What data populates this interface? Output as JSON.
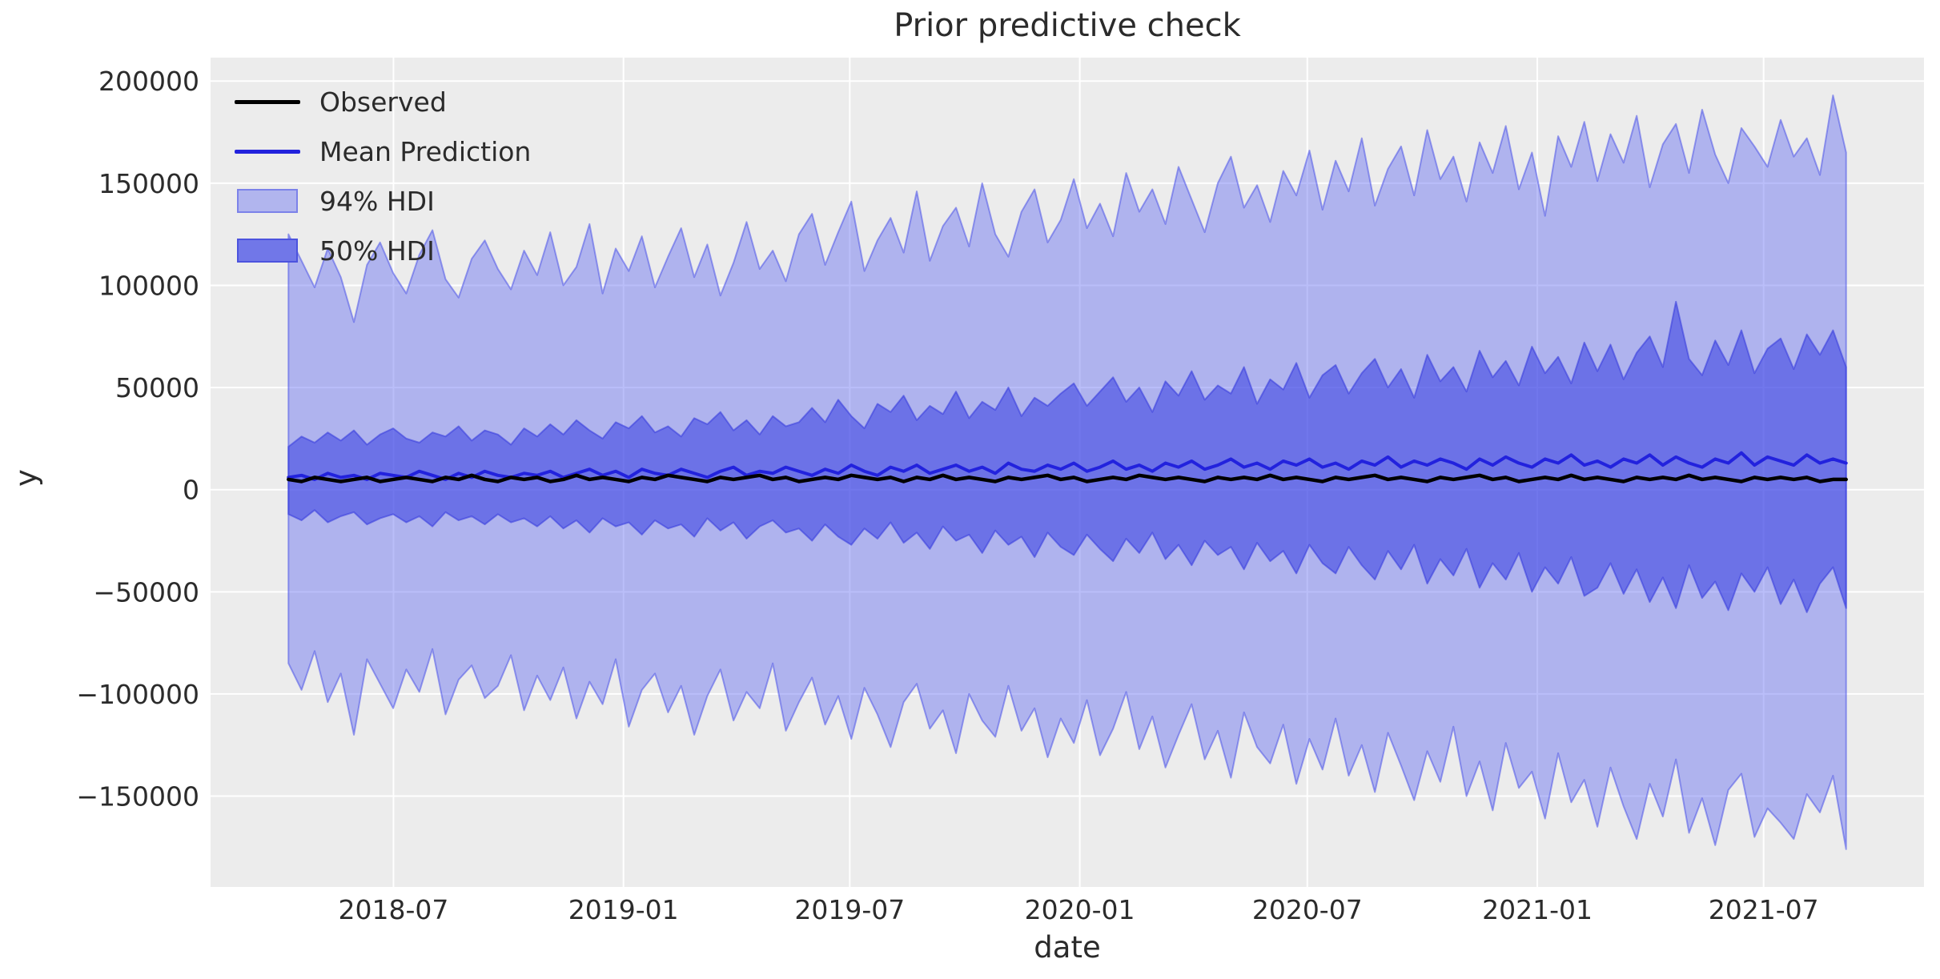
{
  "title": "Prior predictive check",
  "axes": {
    "xlabel": "date",
    "ylabel": "y"
  },
  "legend": {
    "items": [
      {
        "label": "Observed",
        "type": "line",
        "color": "#000000"
      },
      {
        "label": "Mean Prediction",
        "type": "line",
        "color": "#2222dd"
      },
      {
        "label": "94% HDI",
        "type": "patch",
        "fill": "#b1b5ee",
        "border": "#7c82e9"
      },
      {
        "label": "50% HDI",
        "type": "patch",
        "fill": "#7177e8",
        "border": "#4c53de"
      }
    ]
  },
  "chart_data": {
    "type": "area",
    "title": "Prior predictive check",
    "xlabel": "date",
    "ylabel": "y",
    "x_start": "2018-04-08",
    "x_end": "2021-09-05",
    "n_points": 120,
    "xticks": [
      "2018-07-01",
      "2019-01-01",
      "2019-07-01",
      "2020-01-01",
      "2020-07-01",
      "2021-01-01",
      "2021-07-01"
    ],
    "xtick_labels": [
      "2018-07",
      "2019-01",
      "2019-07",
      "2020-01",
      "2020-07",
      "2021-01",
      "2021-07"
    ],
    "yticks": [
      -150000,
      -100000,
      -50000,
      0,
      50000,
      100000,
      150000,
      200000
    ],
    "ytick_labels": [
      "−150000",
      "−100000",
      "−50000",
      "0",
      "50000",
      "100000",
      "150000",
      "200000"
    ],
    "grid": true,
    "legend_position": "upper left",
    "colors": {
      "plot_bg": "#ececec",
      "grid": "#ffffff",
      "hdi94_fill": "rgba(91,101,241,0.42)",
      "hdi94_edge": "rgba(76,84,232,0.55)",
      "hdi50_fill": "rgba(53,60,225,0.55)",
      "hdi50_edge": "rgba(58,64,222,0.60)",
      "mean": "#2222dd",
      "observed": "#000000",
      "tick_text": "#2b2b2b"
    },
    "series": {
      "hdi94_upper": [
        125000,
        112000,
        99000,
        118000,
        104000,
        82000,
        110000,
        121000,
        106000,
        96000,
        115000,
        127000,
        103000,
        94000,
        113000,
        122000,
        108000,
        98000,
        117000,
        105000,
        126000,
        100000,
        109000,
        130000,
        96000,
        118000,
        107000,
        124000,
        99000,
        114000,
        128000,
        104000,
        120000,
        95000,
        111000,
        131000,
        108000,
        117000,
        102000,
        125000,
        135000,
        110000,
        126000,
        141000,
        107000,
        122000,
        133000,
        116000,
        146000,
        112000,
        129000,
        138000,
        119000,
        150000,
        125000,
        114000,
        136000,
        147000,
        121000,
        132000,
        152000,
        128000,
        140000,
        124000,
        155000,
        136000,
        147000,
        130000,
        158000,
        142000,
        126000,
        150000,
        163000,
        138000,
        149000,
        131000,
        156000,
        144000,
        166000,
        137000,
        161000,
        146000,
        172000,
        139000,
        157000,
        168000,
        144000,
        176000,
        152000,
        163000,
        141000,
        170000,
        155000,
        178000,
        147000,
        165000,
        134000,
        173000,
        158000,
        180000,
        151000,
        174000,
        160000,
        183000,
        148000,
        169000,
        179000,
        155000,
        186000,
        164000,
        150000,
        177000,
        168000,
        158000,
        181000,
        163000,
        172000,
        154000,
        193000,
        165000
      ],
      "hdi94_lower": [
        -85000,
        -98000,
        -79000,
        -104000,
        -90000,
        -120000,
        -83000,
        -95000,
        -107000,
        -88000,
        -99000,
        -78000,
        -110000,
        -93000,
        -86000,
        -102000,
        -96000,
        -81000,
        -108000,
        -91000,
        -103000,
        -87000,
        -112000,
        -94000,
        -105000,
        -83000,
        -116000,
        -98000,
        -90000,
        -109000,
        -96000,
        -120000,
        -101000,
        -88000,
        -113000,
        -99000,
        -107000,
        -85000,
        -118000,
        -104000,
        -92000,
        -115000,
        -101000,
        -122000,
        -97000,
        -110000,
        -126000,
        -104000,
        -95000,
        -117000,
        -108000,
        -129000,
        -100000,
        -113000,
        -121000,
        -96000,
        -118000,
        -107000,
        -131000,
        -112000,
        -124000,
        -103000,
        -130000,
        -117000,
        -99000,
        -127000,
        -111000,
        -136000,
        -120000,
        -105000,
        -132000,
        -118000,
        -141000,
        -109000,
        -126000,
        -134000,
        -115000,
        -144000,
        -122000,
        -137000,
        -112000,
        -140000,
        -125000,
        -148000,
        -119000,
        -135000,
        -152000,
        -128000,
        -143000,
        -116000,
        -150000,
        -133000,
        -157000,
        -124000,
        -146000,
        -138000,
        -161000,
        -129000,
        -153000,
        -142000,
        -165000,
        -136000,
        -155000,
        -171000,
        -144000,
        -160000,
        -132000,
        -168000,
        -151000,
        -174000,
        -147000,
        -139000,
        -170000,
        -156000,
        -163000,
        -171000,
        -149000,
        -158000,
        -140000,
        -176000
      ],
      "hdi50_upper": [
        21000,
        26000,
        23000,
        28000,
        24000,
        29000,
        22000,
        27000,
        30000,
        25000,
        23000,
        28000,
        26000,
        31000,
        24000,
        29000,
        27000,
        22000,
        30000,
        26000,
        32000,
        27000,
        34000,
        29000,
        25000,
        33000,
        30000,
        36000,
        28000,
        31000,
        26000,
        35000,
        32000,
        38000,
        29000,
        34000,
        27000,
        36000,
        31000,
        33000,
        40000,
        33000,
        44000,
        36000,
        30000,
        42000,
        38000,
        46000,
        34000,
        41000,
        37000,
        48000,
        35000,
        43000,
        39000,
        50000,
        36000,
        45000,
        41000,
        47000,
        52000,
        41000,
        48000,
        55000,
        43000,
        50000,
        38000,
        53000,
        46000,
        58000,
        44000,
        51000,
        47000,
        60000,
        42000,
        54000,
        49000,
        62000,
        45000,
        56000,
        61000,
        47000,
        57000,
        64000,
        50000,
        59000,
        45000,
        66000,
        53000,
        60000,
        48000,
        68000,
        55000,
        63000,
        51000,
        70000,
        57000,
        65000,
        52000,
        72000,
        58000,
        71000,
        54000,
        67000,
        75000,
        60000,
        92000,
        64000,
        56000,
        73000,
        61000,
        78000,
        57000,
        69000,
        74000,
        59000,
        76000,
        66000,
        78000,
        60000
      ],
      "hdi50_lower": [
        -12000,
        -15000,
        -10000,
        -16000,
        -13000,
        -11000,
        -17000,
        -14000,
        -12000,
        -16000,
        -13000,
        -18000,
        -11000,
        -15000,
        -13000,
        -17000,
        -12000,
        -16000,
        -14000,
        -18000,
        -13000,
        -19000,
        -15000,
        -21000,
        -14000,
        -18000,
        -16000,
        -22000,
        -15000,
        -19000,
        -17000,
        -23000,
        -14000,
        -20000,
        -16000,
        -24000,
        -18000,
        -15000,
        -21000,
        -19000,
        -25000,
        -17000,
        -23000,
        -27000,
        -19000,
        -24000,
        -16000,
        -26000,
        -21000,
        -29000,
        -18000,
        -25000,
        -22000,
        -31000,
        -20000,
        -27000,
        -23000,
        -33000,
        -21000,
        -28000,
        -32000,
        -22000,
        -29000,
        -35000,
        -24000,
        -31000,
        -21000,
        -34000,
        -27000,
        -37000,
        -25000,
        -32000,
        -28000,
        -39000,
        -26000,
        -35000,
        -30000,
        -41000,
        -27000,
        -36000,
        -41000,
        -28000,
        -37000,
        -44000,
        -30000,
        -39000,
        -27000,
        -46000,
        -34000,
        -42000,
        -29000,
        -48000,
        -36000,
        -44000,
        -31000,
        -50000,
        -38000,
        -46000,
        -33000,
        -52000,
        -48000,
        -36000,
        -51000,
        -39000,
        -55000,
        -43000,
        -58000,
        -37000,
        -53000,
        -45000,
        -59000,
        -41000,
        -50000,
        -38000,
        -56000,
        -44000,
        -60000,
        -46000,
        -38000,
        -58000
      ],
      "mean_prediction": [
        6000,
        7000,
        5000,
        8000,
        6000,
        7000,
        5000,
        8000,
        7000,
        6000,
        9000,
        7000,
        5000,
        8000,
        6000,
        9000,
        7000,
        6000,
        8000,
        7000,
        9000,
        6000,
        8000,
        10000,
        7000,
        9000,
        6000,
        10000,
        8000,
        7000,
        10000,
        8000,
        6000,
        9000,
        11000,
        7000,
        9000,
        8000,
        11000,
        9000,
        7000,
        10000,
        8000,
        12000,
        9000,
        7000,
        11000,
        9000,
        12000,
        8000,
        10000,
        12000,
        9000,
        11000,
        8000,
        13000,
        10000,
        9000,
        12000,
        10000,
        13000,
        9000,
        11000,
        14000,
        10000,
        12000,
        9000,
        13000,
        11000,
        14000,
        10000,
        12000,
        15000,
        11000,
        13000,
        10000,
        14000,
        12000,
        15000,
        11000,
        13000,
        10000,
        14000,
        12000,
        16000,
        11000,
        14000,
        12000,
        15000,
        13000,
        10000,
        15000,
        12000,
        16000,
        13000,
        11000,
        15000,
        13000,
        17000,
        12000,
        14000,
        11000,
        15000,
        13000,
        17000,
        12000,
        16000,
        13000,
        11000,
        15000,
        13000,
        18000,
        12000,
        16000,
        14000,
        12000,
        17000,
        13000,
        15000,
        13000
      ],
      "observed": [
        5000,
        4000,
        6000,
        5000,
        4000,
        5000,
        6000,
        4000,
        5000,
        6000,
        5000,
        4000,
        6000,
        5000,
        7000,
        5000,
        4000,
        6000,
        5000,
        6000,
        4000,
        5000,
        7000,
        5000,
        6000,
        5000,
        4000,
        6000,
        5000,
        7000,
        6000,
        5000,
        4000,
        6000,
        5000,
        6000,
        7000,
        5000,
        6000,
        4000,
        5000,
        6000,
        5000,
        7000,
        6000,
        5000,
        6000,
        4000,
        6000,
        5000,
        7000,
        5000,
        6000,
        5000,
        4000,
        6000,
        5000,
        6000,
        7000,
        5000,
        6000,
        4000,
        5000,
        6000,
        5000,
        7000,
        6000,
        5000,
        6000,
        5000,
        4000,
        6000,
        5000,
        6000,
        5000,
        7000,
        5000,
        6000,
        5000,
        4000,
        6000,
        5000,
        6000,
        7000,
        5000,
        6000,
        5000,
        4000,
        6000,
        5000,
        6000,
        7000,
        5000,
        6000,
        4000,
        5000,
        6000,
        5000,
        7000,
        5000,
        6000,
        5000,
        4000,
        6000,
        5000,
        6000,
        5000,
        7000,
        5000,
        6000,
        5000,
        4000,
        6000,
        5000,
        6000,
        5000,
        6000,
        4000,
        5000,
        5000
      ]
    }
  }
}
